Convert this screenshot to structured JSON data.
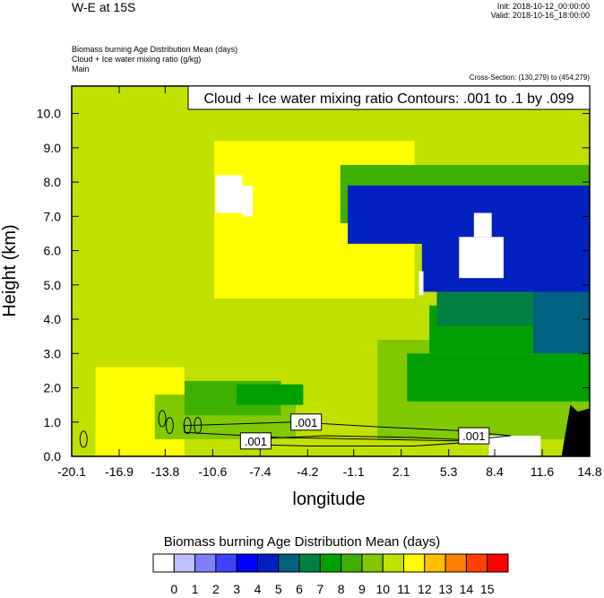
{
  "header": {
    "title": "W-E at 15S",
    "init": "Init: 2018-10-12_00:00:00",
    "valid": "Valid: 2018-10-16_18:00:00",
    "field1": "Biomass burning Age Distribution Mean   (days)",
    "field2": "Cloud + Ice water mixing ratio   (g/kg)",
    "field3": "Main",
    "cross_section": "Cross-Section: (130,279) to (454,279)"
  },
  "chart_data": {
    "type": "heatmap",
    "contour_title": "Cloud + Ice water mixing ratio Contours: .001 to .1 by .099",
    "xlabel": "longitude",
    "ylabel": "Height (km)",
    "xlim": [
      -20.1,
      14.8
    ],
    "ylim": [
      0.0,
      10.8
    ],
    "x_ticks": [
      "-20.1",
      "-16.9",
      "-13.8",
      "-10.6",
      "-7.4",
      "-4.2",
      "-1.1",
      "2.1",
      "5.3",
      "8.4",
      "11.6",
      "14.8"
    ],
    "y_ticks": [
      "0.0",
      "1.0",
      "2.0",
      "3.0",
      "4.0",
      "5.0",
      "6.0",
      "7.0",
      "8.0",
      "9.0",
      "10.0"
    ],
    "contour_labels": [
      {
        "text": ".001",
        "x": -4.3,
        "y": 1.0
      },
      {
        "text": ".001",
        "x": -7.7,
        "y": 0.45
      },
      {
        "text": ".001",
        "x": 7.0,
        "y": 0.6
      }
    ],
    "colorbar": {
      "title": "Biomass burning Age Distribution Mean  (days)",
      "levels": [
        "0",
        "1",
        "2",
        "3",
        "4",
        "5",
        "6",
        "7",
        "8",
        "9",
        "10",
        "11",
        "12",
        "13",
        "14",
        "15"
      ],
      "colors": [
        "#ffffff",
        "#c0c0ff",
        "#8080ff",
        "#4040ff",
        "#0000ff",
        "#0020c0",
        "#006080",
        "#008040",
        "#00a000",
        "#40b000",
        "#80c800",
        "#c0e000",
        "#ffff00",
        "#ffc000",
        "#ff8000",
        "#ff4000",
        "#ff0000"
      ]
    },
    "regions": [
      {
        "value": 10.5,
        "x": [
          -20.1,
          14.8
        ],
        "y": [
          0.0,
          10.8
        ]
      },
      {
        "value": 11.2,
        "x": [
          -10.5,
          3.0
        ],
        "y": [
          4.6,
          9.2
        ]
      },
      {
        "value": 11.2,
        "x": [
          -20.1,
          -12.5
        ],
        "y": [
          0.0,
          2.6
        ]
      },
      {
        "value": 10.0,
        "x": [
          -20.1,
          -18.5
        ],
        "y": [
          0.0,
          3.5
        ]
      },
      {
        "value": 9.0,
        "x": [
          -14.5,
          -5.0
        ],
        "y": [
          0.5,
          1.8
        ]
      },
      {
        "value": 8.0,
        "x": [
          -12.5,
          -6.0
        ],
        "y": [
          1.2,
          2.2
        ]
      },
      {
        "value": 7.0,
        "x": [
          -9.0,
          -4.5
        ],
        "y": [
          1.5,
          2.1
        ]
      },
      {
        "value": 9.0,
        "x": [
          0.5,
          14.8
        ],
        "y": [
          0.5,
          3.4
        ]
      },
      {
        "value": 7.0,
        "x": [
          2.5,
          14.8
        ],
        "y": [
          1.6,
          3.0
        ]
      },
      {
        "value": 7.0,
        "x": [
          4.0,
          14.8
        ],
        "y": [
          3.0,
          4.4
        ]
      },
      {
        "value": 6.0,
        "x": [
          4.5,
          14.8
        ],
        "y": [
          3.8,
          6.0
        ]
      },
      {
        "value": 5.0,
        "x": [
          11.0,
          14.8
        ],
        "y": [
          3.0,
          7.0
        ]
      },
      {
        "value": 8.0,
        "x": [
          -2.0,
          14.8
        ],
        "y": [
          6.8,
          8.5
        ]
      },
      {
        "value": 4.0,
        "x": [
          -1.5,
          14.8
        ],
        "y": [
          6.2,
          7.9
        ]
      },
      {
        "value": 4.0,
        "x": [
          3.5,
          14.8
        ],
        "y": [
          4.8,
          6.4
        ]
      },
      {
        "value": 0.0,
        "x": [
          -10.4,
          -8.6
        ],
        "y": [
          7.1,
          8.2
        ]
      },
      {
        "value": 0.0,
        "x": [
          -8.6,
          -7.9
        ],
        "y": [
          7.0,
          7.9
        ]
      },
      {
        "value": 0.0,
        "x": [
          6.0,
          9.0
        ],
        "y": [
          5.2,
          6.4
        ]
      },
      {
        "value": 0.0,
        "x": [
          7.0,
          8.2
        ],
        "y": [
          6.4,
          7.1
        ]
      },
      {
        "value": 0.0,
        "x": [
          8.0,
          11.5
        ],
        "y": [
          0.0,
          0.6
        ]
      },
      {
        "value": 0.0,
        "x": [
          3.3,
          3.6
        ],
        "y": [
          4.7,
          5.4
        ]
      }
    ]
  }
}
